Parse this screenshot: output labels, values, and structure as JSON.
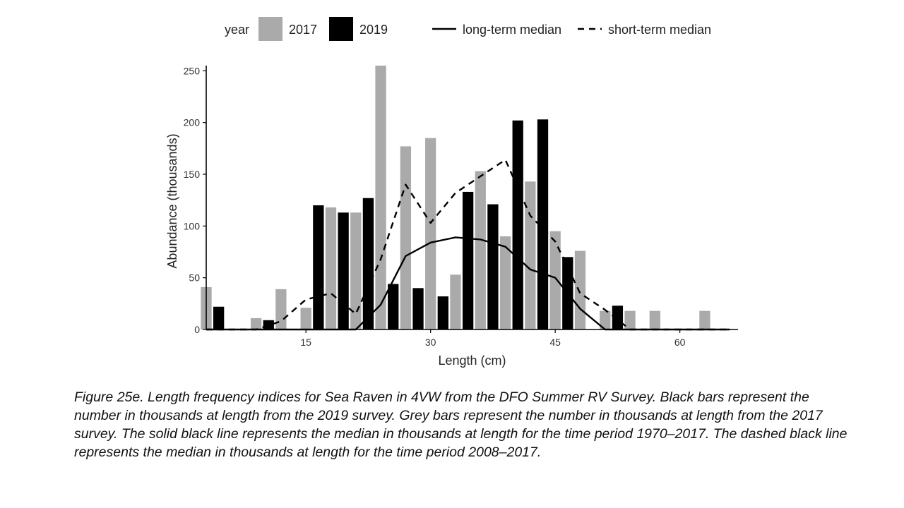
{
  "chart_data": {
    "type": "bar",
    "title": "",
    "xlabel": "Length (cm)",
    "ylabel": "Abundance (thousands)",
    "xlim": [
      3,
      67
    ],
    "ylim": [
      0,
      255
    ],
    "x_ticks": [
      15,
      30,
      45,
      60
    ],
    "y_ticks": [
      0,
      50,
      100,
      150,
      200,
      250
    ],
    "bar_width": 1.3,
    "grid": false,
    "legend_position": "top",
    "legend_title": "year",
    "series": [
      {
        "name": "2017",
        "kind": "bar",
        "color": "#aaaaaa",
        "points": [
          [
            3,
            41
          ],
          [
            9,
            11
          ],
          [
            12,
            39
          ],
          [
            15,
            21
          ],
          [
            18,
            118
          ],
          [
            21,
            113
          ],
          [
            24,
            255
          ],
          [
            27,
            177
          ],
          [
            30,
            185
          ],
          [
            33,
            53
          ],
          [
            36,
            153
          ],
          [
            39,
            90
          ],
          [
            42,
            143
          ],
          [
            45,
            95
          ],
          [
            48,
            76
          ],
          [
            51,
            18
          ],
          [
            54,
            18
          ],
          [
            57,
            18
          ],
          [
            63,
            18
          ]
        ]
      },
      {
        "name": "2019",
        "kind": "bar",
        "color": "#000000",
        "points": [
          [
            4.5,
            22
          ],
          [
            10.5,
            9
          ],
          [
            16.5,
            120
          ],
          [
            19.5,
            113
          ],
          [
            22.5,
            127
          ],
          [
            25.5,
            44
          ],
          [
            28.5,
            40
          ],
          [
            31.5,
            32
          ],
          [
            34.5,
            133
          ],
          [
            37.5,
            121
          ],
          [
            40.5,
            202
          ],
          [
            43.5,
            203
          ],
          [
            46.5,
            70
          ],
          [
            52.5,
            23
          ]
        ]
      },
      {
        "name": "long-term median",
        "kind": "line",
        "style": "solid",
        "color": "#000000",
        "points": [
          [
            3,
            0
          ],
          [
            9,
            0
          ],
          [
            12,
            0
          ],
          [
            15,
            0
          ],
          [
            18,
            0
          ],
          [
            21,
            0
          ],
          [
            24,
            24
          ],
          [
            27,
            71
          ],
          [
            30,
            84
          ],
          [
            33,
            89
          ],
          [
            36,
            87
          ],
          [
            39,
            80
          ],
          [
            42,
            58
          ],
          [
            45,
            50
          ],
          [
            48,
            20
          ],
          [
            51,
            0
          ],
          [
            54,
            0
          ],
          [
            57,
            0
          ],
          [
            60,
            0
          ],
          [
            63,
            0
          ],
          [
            66,
            0
          ]
        ]
      },
      {
        "name": "short-term median",
        "kind": "line",
        "style": "dashed",
        "color": "#000000",
        "points": [
          [
            3,
            0
          ],
          [
            9,
            0
          ],
          [
            12,
            8
          ],
          [
            15,
            29
          ],
          [
            18,
            35
          ],
          [
            21,
            15
          ],
          [
            24,
            68
          ],
          [
            27,
            140
          ],
          [
            30,
            103
          ],
          [
            33,
            132
          ],
          [
            36,
            148
          ],
          [
            39,
            164
          ],
          [
            42,
            110
          ],
          [
            45,
            85
          ],
          [
            48,
            35
          ],
          [
            51,
            19
          ],
          [
            54,
            0
          ],
          [
            57,
            0
          ],
          [
            60,
            0
          ],
          [
            63,
            0
          ],
          [
            66,
            0
          ]
        ]
      }
    ]
  },
  "caption": "Figure 25e. Length frequency indices for Sea Raven in 4VW from the DFO Summer RV Survey. Black bars represent the number in thousands at length from the 2019 survey. Grey bars represent the number in thousands at length from the 2017 survey. The solid black line represents the median in thousands at length for the time period 1970–2017. The dashed black line represents the median in thousands at length for the time period 2008–2017."
}
